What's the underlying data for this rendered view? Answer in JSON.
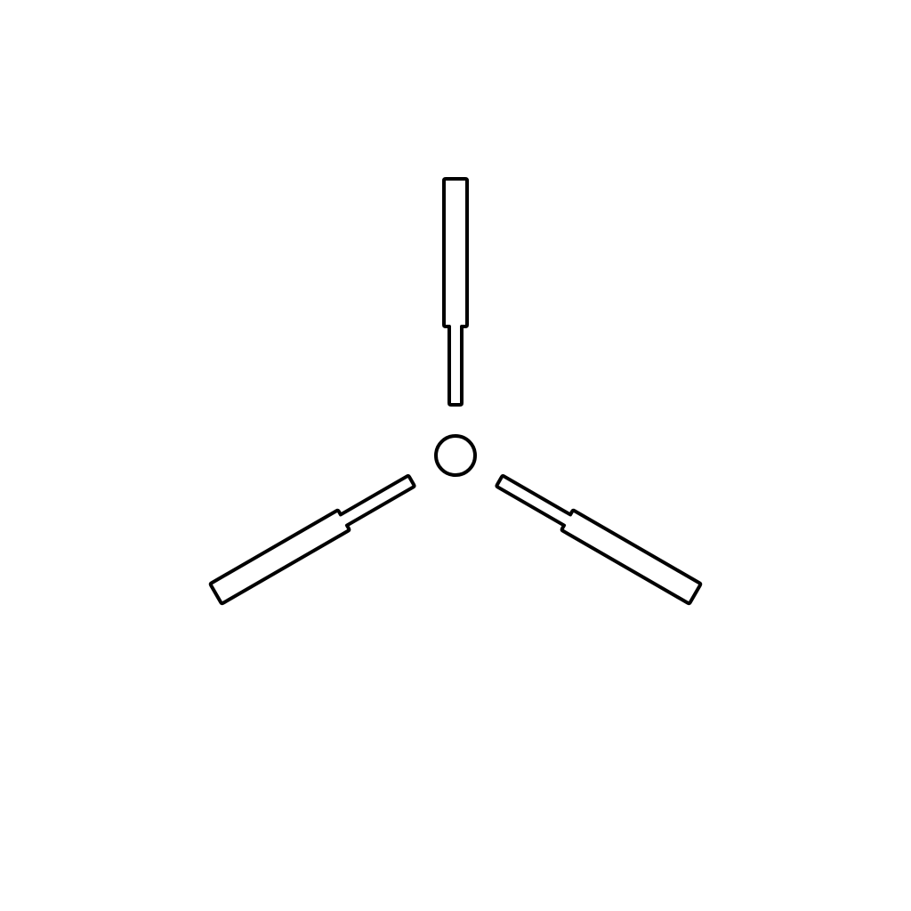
{
  "icon": {
    "name": "three-arm-hex-key-icon",
    "stroke_color": "#000000",
    "background_color": "#ffffff",
    "arm_count": 3
  }
}
